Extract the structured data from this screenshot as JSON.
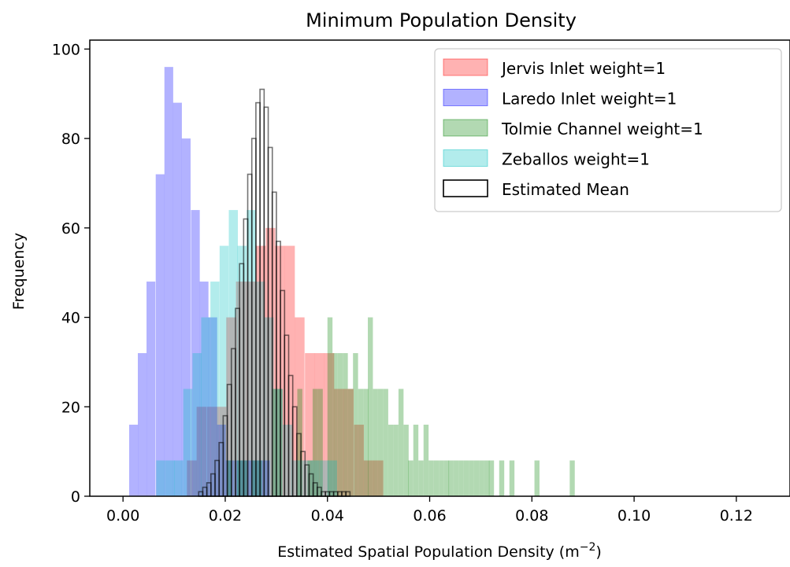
{
  "chart_data": {
    "type": "bar",
    "subtype": "overlapping-histogram",
    "title": "Minimum Population Density",
    "xlabel": "Estimated Spatial Population Density (m",
    "xlabel_sup": "−2",
    "xlabel_close": ")",
    "ylabel": "Frequency",
    "xlim": [
      -0.0065,
      0.1305
    ],
    "ylim": [
      0,
      102
    ],
    "xticks": [
      0.0,
      0.02,
      0.04,
      0.06,
      0.08,
      0.1,
      0.12
    ],
    "xtick_labels": [
      "0.00",
      "0.02",
      "0.04",
      "0.06",
      "0.08",
      "0.10",
      "0.12"
    ],
    "yticks": [
      0,
      20,
      40,
      60,
      80,
      100
    ],
    "ytick_labels": [
      "0",
      "20",
      "40",
      "60",
      "80",
      "100"
    ],
    "grid": false,
    "legend_position": "top-right",
    "series": [
      {
        "name": "Jervis Inlet weight=1",
        "color": "#ff0000",
        "alpha": 0.3,
        "style": "filled",
        "bin_width": 0.00192,
        "bins": [
          [
            0.0125,
            8
          ],
          [
            0.0144,
            20
          ],
          [
            0.0164,
            20
          ],
          [
            0.0183,
            20
          ],
          [
            0.0202,
            40
          ],
          [
            0.0221,
            48
          ],
          [
            0.024,
            48
          ],
          [
            0.026,
            56
          ],
          [
            0.0279,
            60
          ],
          [
            0.0298,
            56
          ],
          [
            0.0317,
            56
          ],
          [
            0.0336,
            40
          ],
          [
            0.0356,
            32
          ],
          [
            0.0375,
            32
          ],
          [
            0.0394,
            32
          ],
          [
            0.0413,
            24
          ],
          [
            0.0432,
            24
          ],
          [
            0.0452,
            16
          ],
          [
            0.0471,
            8
          ],
          [
            0.049,
            8
          ]
        ]
      },
      {
        "name": "Laredo Inlet weight=1",
        "color": "#0000ff",
        "alpha": 0.3,
        "style": "filled",
        "bin_width": 0.00172,
        "bins": [
          [
            0.0012,
            16
          ],
          [
            0.0029,
            32
          ],
          [
            0.0046,
            48
          ],
          [
            0.0064,
            72
          ],
          [
            0.0081,
            96
          ],
          [
            0.0098,
            88
          ],
          [
            0.0115,
            80
          ],
          [
            0.0133,
            64
          ],
          [
            0.015,
            48
          ],
          [
            0.0167,
            40
          ],
          [
            0.0184,
            16
          ],
          [
            0.0201,
            8
          ],
          [
            0.0219,
            8
          ],
          [
            0.0236,
            8
          ],
          [
            0.0253,
            8
          ],
          [
            0.027,
            8
          ]
        ]
      },
      {
        "name": "Tolmie Channel weight=1",
        "color": "#008000",
        "alpha": 0.3,
        "style": "filled",
        "bin_width": 0.00099,
        "bins": [
          [
            0.0203,
            8
          ],
          [
            0.0223,
            8
          ],
          [
            0.0233,
            8
          ],
          [
            0.0252,
            8
          ],
          [
            0.0262,
            8
          ],
          [
            0.0292,
            24
          ],
          [
            0.0302,
            24
          ],
          [
            0.0341,
            24
          ],
          [
            0.0361,
            8
          ],
          [
            0.0371,
            24
          ],
          [
            0.0381,
            24
          ],
          [
            0.04,
            40
          ],
          [
            0.041,
            32
          ],
          [
            0.042,
            32
          ],
          [
            0.043,
            32
          ],
          [
            0.044,
            24
          ],
          [
            0.045,
            32
          ],
          [
            0.046,
            24
          ],
          [
            0.047,
            24
          ],
          [
            0.0479,
            40
          ],
          [
            0.0489,
            24
          ],
          [
            0.0499,
            24
          ],
          [
            0.0509,
            24
          ],
          [
            0.0519,
            16
          ],
          [
            0.0529,
            16
          ],
          [
            0.0539,
            24
          ],
          [
            0.0549,
            16
          ],
          [
            0.0558,
            8
          ],
          [
            0.0568,
            16
          ],
          [
            0.0578,
            8
          ],
          [
            0.0588,
            16
          ],
          [
            0.0598,
            8
          ],
          [
            0.0608,
            8
          ],
          [
            0.0618,
            8
          ],
          [
            0.0628,
            8
          ],
          [
            0.0637,
            8
          ],
          [
            0.0647,
            8
          ],
          [
            0.0657,
            8
          ],
          [
            0.0667,
            8
          ],
          [
            0.0677,
            8
          ],
          [
            0.0687,
            8
          ],
          [
            0.0697,
            8
          ],
          [
            0.0707,
            8
          ],
          [
            0.0716,
            8
          ],
          [
            0.0736,
            8
          ],
          [
            0.0756,
            8
          ],
          [
            0.0805,
            8
          ],
          [
            0.0874,
            8
          ]
        ]
      },
      {
        "name": "Zeballos weight=1",
        "color": "#00bfbf",
        "alpha": 0.3,
        "style": "filled",
        "bin_width": 0.00177,
        "bins": [
          [
            0.0065,
            8
          ],
          [
            0.0083,
            8
          ],
          [
            0.01,
            8
          ],
          [
            0.0118,
            24
          ],
          [
            0.0136,
            32
          ],
          [
            0.0153,
            40
          ],
          [
            0.0171,
            48
          ],
          [
            0.0189,
            56
          ],
          [
            0.0207,
            64
          ],
          [
            0.0224,
            56
          ],
          [
            0.0242,
            64
          ],
          [
            0.026,
            48
          ],
          [
            0.0277,
            40
          ],
          [
            0.0295,
            24
          ],
          [
            0.0313,
            16
          ],
          [
            0.033,
            8
          ],
          [
            0.0348,
            8
          ],
          [
            0.0366,
            8
          ],
          [
            0.0384,
            8
          ],
          [
            0.0401,
            8
          ]
        ]
      },
      {
        "name": "Estimated Mean",
        "color": "#000000",
        "alpha": 1,
        "style": "step",
        "bin_width": 0.00081,
        "bins": [
          [
            0.0148,
            1
          ],
          [
            0.0156,
            2
          ],
          [
            0.0164,
            3
          ],
          [
            0.0172,
            5
          ],
          [
            0.018,
            8
          ],
          [
            0.0188,
            12
          ],
          [
            0.0196,
            18
          ],
          [
            0.0204,
            25
          ],
          [
            0.0212,
            33
          ],
          [
            0.022,
            42
          ],
          [
            0.0228,
            52
          ],
          [
            0.0236,
            62
          ],
          [
            0.0244,
            72
          ],
          [
            0.0252,
            80
          ],
          [
            0.026,
            88
          ],
          [
            0.0268,
            91
          ],
          [
            0.0276,
            87
          ],
          [
            0.0284,
            78
          ],
          [
            0.0292,
            68
          ],
          [
            0.03,
            57
          ],
          [
            0.0308,
            46
          ],
          [
            0.0316,
            36
          ],
          [
            0.0324,
            27
          ],
          [
            0.0332,
            20
          ],
          [
            0.034,
            14
          ],
          [
            0.0348,
            10
          ],
          [
            0.0356,
            7
          ],
          [
            0.0364,
            5
          ],
          [
            0.0372,
            3
          ],
          [
            0.038,
            2
          ],
          [
            0.0388,
            1
          ],
          [
            0.0396,
            1
          ],
          [
            0.0404,
            1
          ],
          [
            0.0412,
            1
          ],
          [
            0.042,
            1
          ],
          [
            0.0428,
            1
          ],
          [
            0.0436,
            1
          ]
        ]
      }
    ]
  }
}
